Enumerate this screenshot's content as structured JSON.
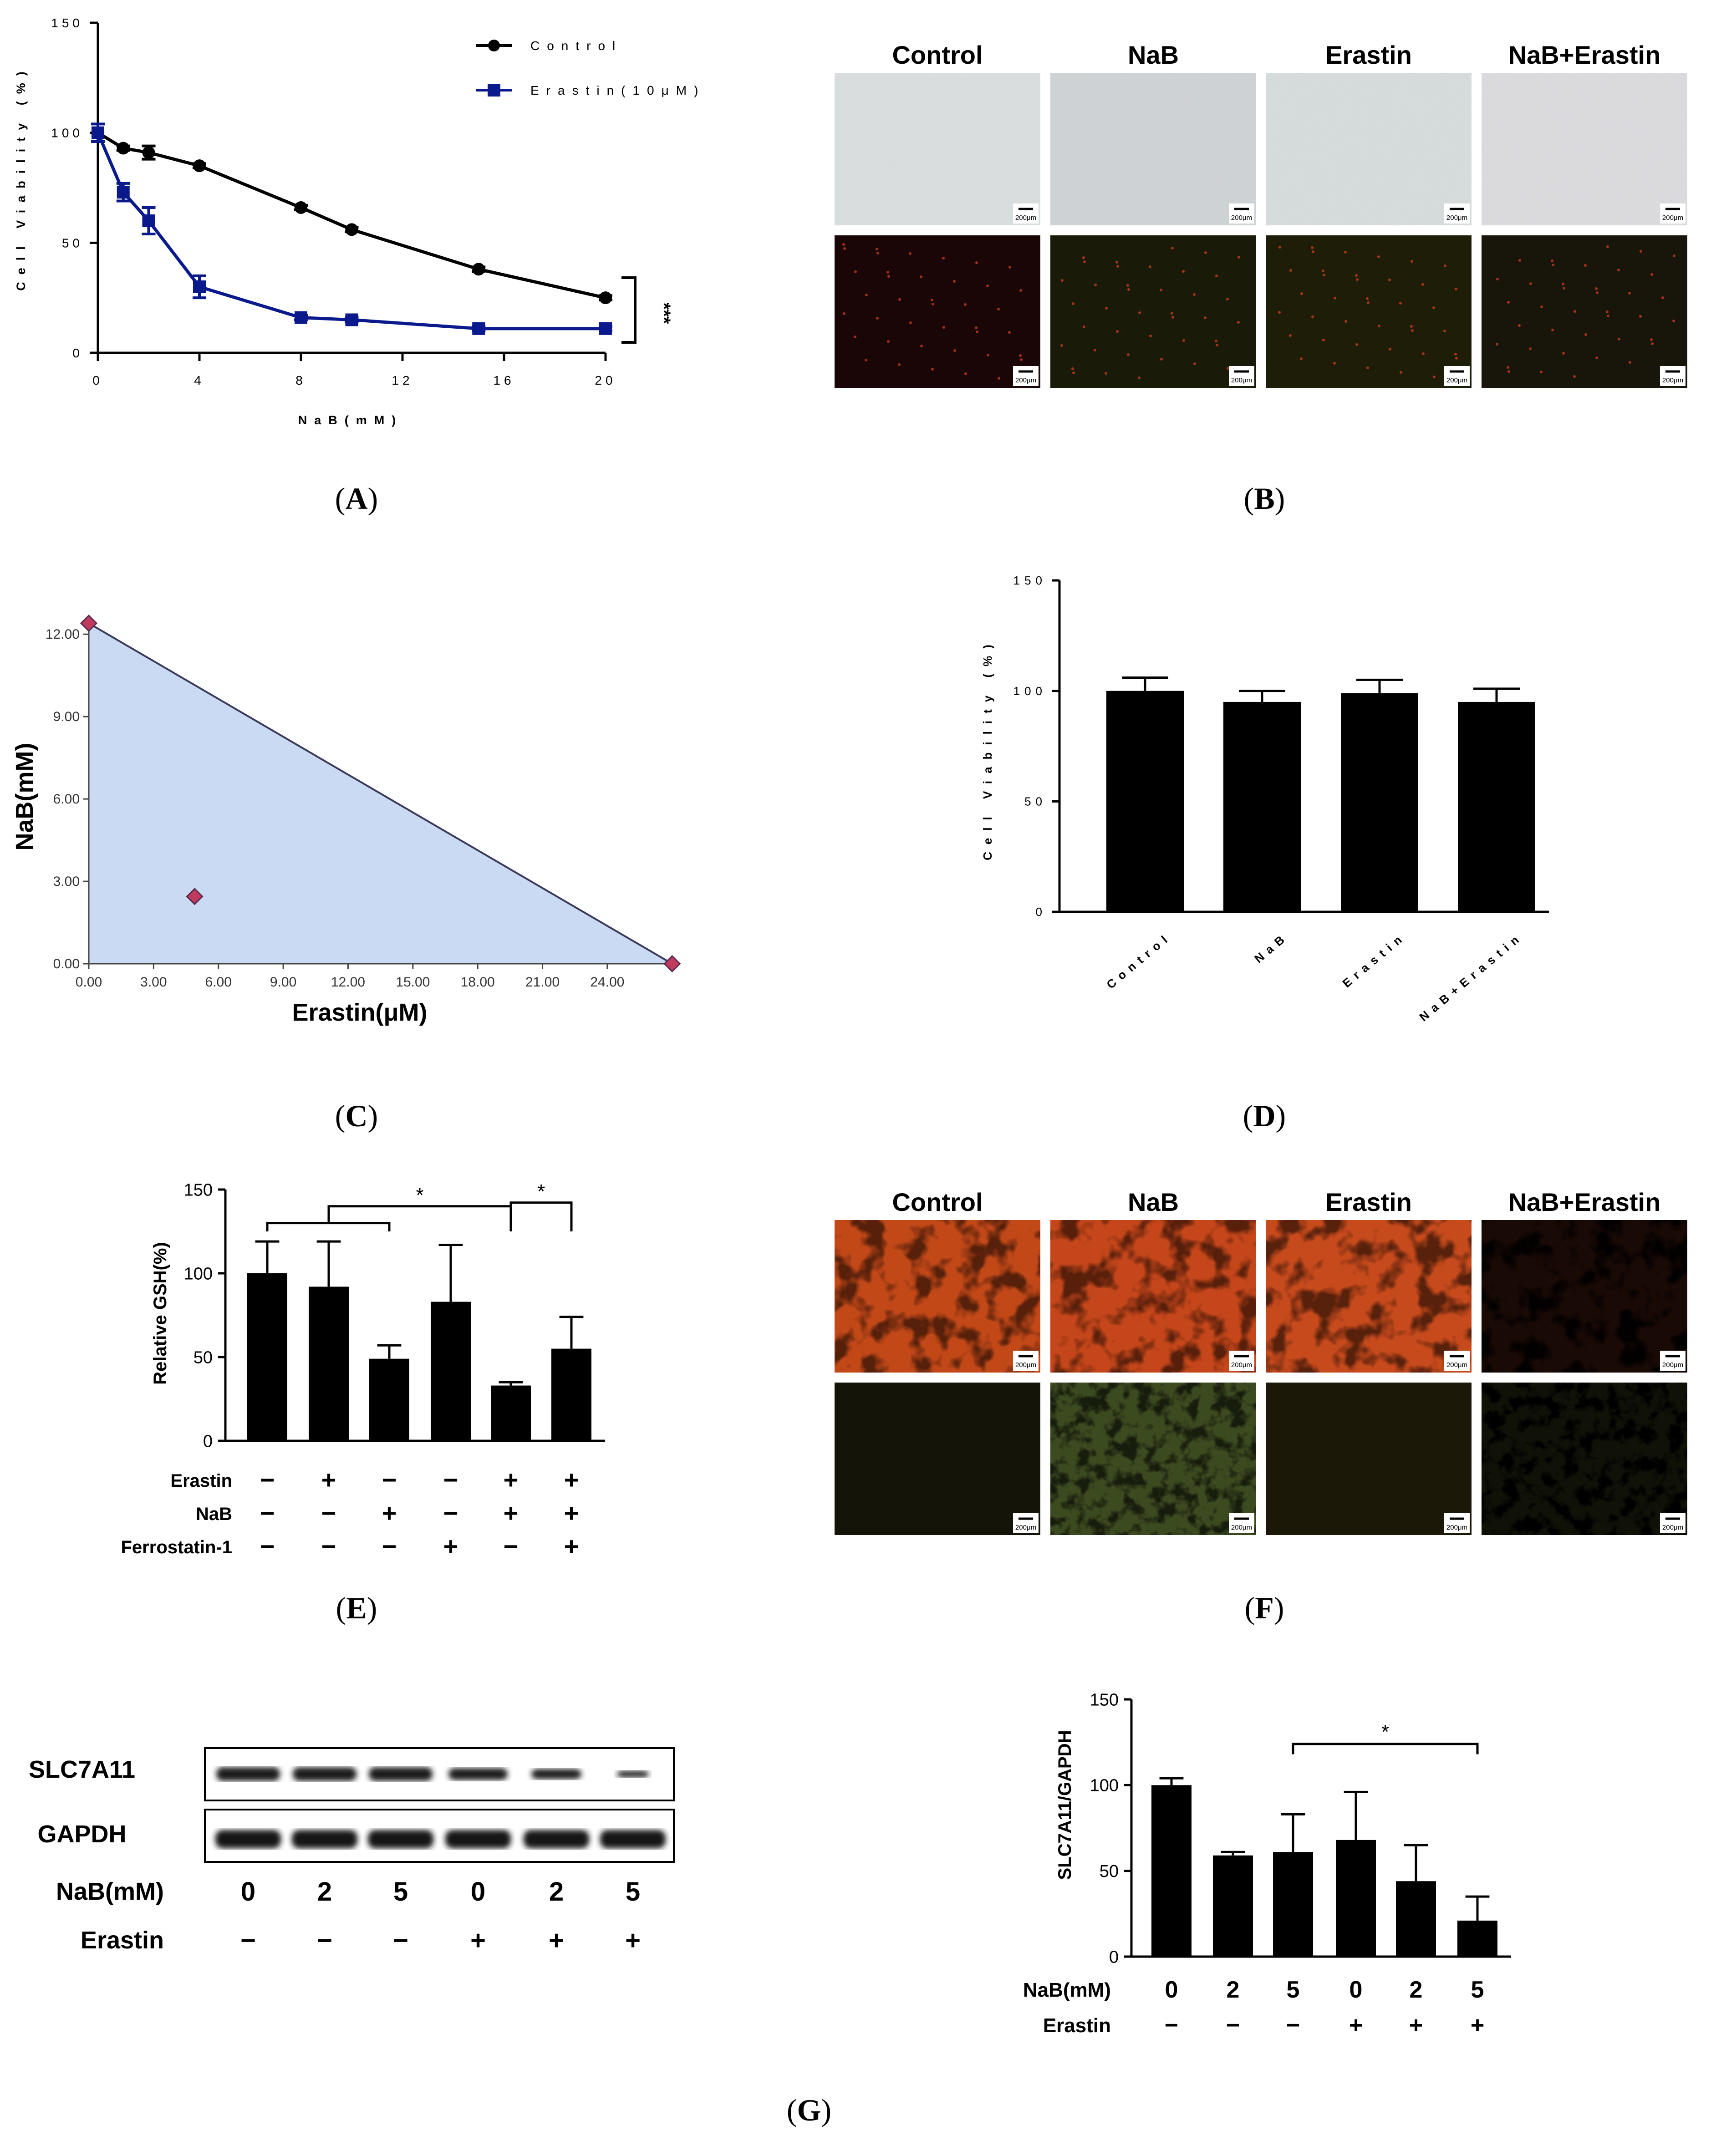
{
  "panel_labels": [
    "(A)",
    "(B)",
    "(C)",
    "(D)",
    "(E)",
    "(F)",
    "(G)"
  ],
  "chart_data": [
    {
      "panel": "A",
      "type": "line",
      "x": [
        0,
        1,
        2,
        4,
        8,
        10,
        15,
        20
      ],
      "xticks": [
        "0",
        "4",
        "8",
        "12",
        "16",
        "20"
      ],
      "yticks": [
        "0",
        "50",
        "100",
        "150"
      ],
      "xlim": [
        0,
        20
      ],
      "ylim": [
        0,
        150
      ],
      "xlabel": "NaB(mM)",
      "ylabel": "Cell Viability (%)",
      "series": [
        {
          "name": "Control",
          "color": "#000000",
          "marker": "circle",
          "values": [
            100,
            93,
            91,
            85,
            66,
            56,
            38,
            25
          ],
          "errors": [
            0,
            1,
            3,
            1,
            1,
            1,
            1,
            1
          ]
        },
        {
          "name": "Erastin(10μM)",
          "color": "#0a1a8c",
          "marker": "square",
          "values": [
            100,
            73,
            60,
            30,
            16,
            15,
            11,
            11
          ],
          "errors": [
            4,
            4,
            6,
            5,
            1,
            1,
            1,
            1
          ]
        }
      ],
      "significance": "***",
      "legend": "top-right"
    },
    {
      "panel": "C",
      "type": "scatter",
      "x_values": [
        0.0,
        4.9,
        27.0
      ],
      "y_values": [
        12.4,
        2.45,
        0.0
      ],
      "xticks": [
        "0.00",
        "3.00",
        "6.00",
        "9.00",
        "12.00",
        "15.00",
        "18.00",
        "21.00",
        "24.00"
      ],
      "yticks": [
        "0.00",
        "3.00",
        "6.00",
        "9.00",
        "12.00"
      ],
      "xlim": [
        0,
        27.5
      ],
      "ylim": [
        0,
        12.6
      ],
      "xlabel": "Erastin(μM)",
      "ylabel": "NaB(mM)",
      "fill_color": "#c9daf2",
      "marker_color": "#c03a5e"
    },
    {
      "panel": "D",
      "type": "bar",
      "categories": [
        "Control",
        "NaB",
        "Erastin",
        "NaB+Erastin"
      ],
      "values": [
        100,
        95,
        99,
        95
      ],
      "errors": [
        6,
        5,
        6,
        6
      ],
      "ylim": [
        0,
        150
      ],
      "yticks": [
        "0",
        "50",
        "100",
        "150"
      ],
      "ylabel": "Cell Viability (%)"
    },
    {
      "panel": "E",
      "type": "bar",
      "values": [
        100,
        92,
        49,
        83,
        33,
        55
      ],
      "errors": [
        19,
        27,
        8,
        34,
        2,
        19
      ],
      "ylim": [
        0,
        150
      ],
      "yticks": [
        "0",
        "50",
        "100",
        "150"
      ],
      "ylabel": "Relative GSH(%)",
      "treatments": [
        {
          "name": "Erastin",
          "signs": [
            "−",
            "+",
            "−",
            "−",
            "+",
            "+"
          ]
        },
        {
          "name": "NaB",
          "signs": [
            "−",
            "−",
            "+",
            "−",
            "+",
            "+"
          ]
        },
        {
          "name": "Ferrostatin-1",
          "signs": [
            "−",
            "−",
            "−",
            "+",
            "−",
            "+"
          ]
        }
      ],
      "significance": [
        "*",
        "*"
      ]
    },
    {
      "panel": "G",
      "type": "bar",
      "values": [
        100,
        59,
        61,
        68,
        44,
        21
      ],
      "errors": [
        4,
        2,
        22,
        28,
        21,
        14
      ],
      "ylim": [
        0,
        150
      ],
      "yticks": [
        "0",
        "50",
        "100",
        "150"
      ],
      "ylabel": "SLC7A11/GAPDH",
      "treatments": [
        {
          "name": "NaB(mM)",
          "signs": [
            "0",
            "2",
            "5",
            "0",
            "2",
            "5"
          ]
        },
        {
          "name": "Erastin",
          "signs": [
            "−",
            "−",
            "−",
            "+",
            "+",
            "+"
          ]
        }
      ],
      "significance": [
        "*"
      ]
    }
  ],
  "micrographs_B": {
    "headers": [
      "Control",
      "NaB",
      "Erastin",
      "NaB+Erastin"
    ],
    "scale_label": "200μm"
  },
  "micrographs_F": {
    "headers": [
      "Control",
      "NaB",
      "Erastin",
      "NaB+Erastin"
    ],
    "scale_label": "200μm"
  },
  "western_blot": {
    "bands": [
      "SLC7A11",
      "GAPDH"
    ],
    "rows": [
      {
        "name": "NaB(mM)",
        "values": [
          "0",
          "2",
          "5",
          "0",
          "2",
          "5"
        ]
      },
      {
        "name": "Erastin",
        "values": [
          "−",
          "−",
          "−",
          "+",
          "+",
          "+"
        ]
      }
    ]
  }
}
